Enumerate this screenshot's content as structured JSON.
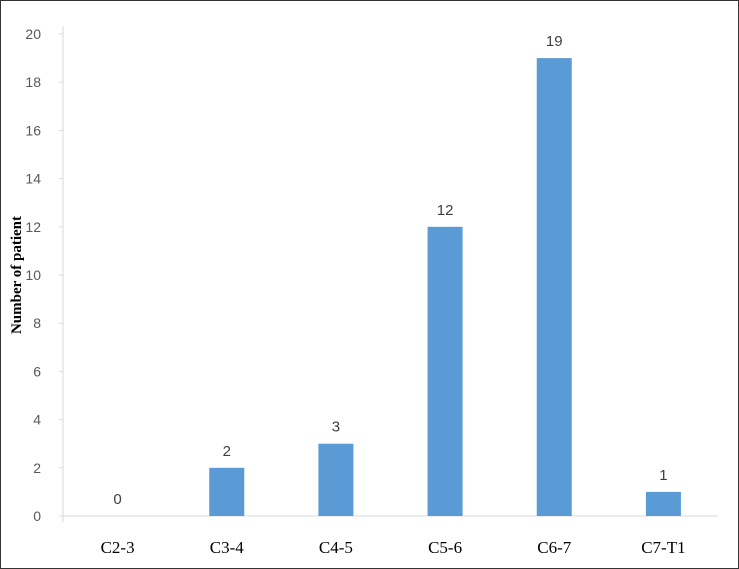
{
  "chart_data": {
    "type": "bar",
    "categories": [
      "C2-3",
      "C3-4",
      "C4-5",
      "C5-6",
      "C6-7",
      "C7-T1"
    ],
    "values": [
      0,
      2,
      3,
      12,
      19,
      1
    ],
    "data_labels": [
      "0",
      "2",
      "3",
      "12",
      "19",
      "1"
    ],
    "ylabel": "Number of patient",
    "xlabel": "",
    "ylim": [
      0,
      20
    ],
    "yticks": [
      0,
      2,
      4,
      6,
      8,
      10,
      12,
      14,
      16,
      18,
      20
    ],
    "grid": false,
    "legend": "none",
    "bar_color": "#5B9BD5"
  }
}
